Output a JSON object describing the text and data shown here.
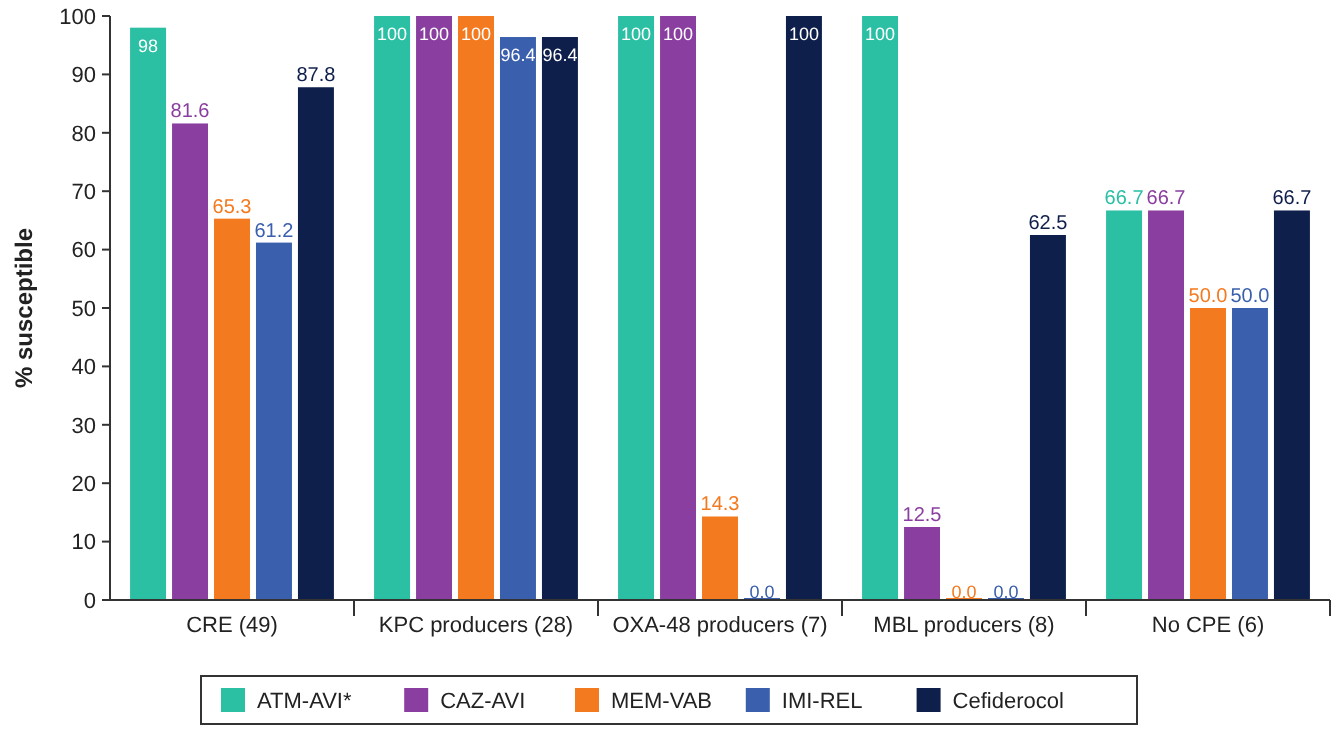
{
  "chart_data": {
    "type": "bar",
    "ylabel": "% susceptible",
    "categories": [
      "CRE (49)",
      "KPC producers (28)",
      "OXA-48 producers (7)",
      "MBL producers (8)",
      "No CPE (6)"
    ],
    "ylim": [
      0,
      100
    ],
    "yticks": [
      0,
      10,
      20,
      30,
      40,
      50,
      60,
      70,
      80,
      90,
      100
    ],
    "grid": false,
    "legend": "bottom",
    "series": [
      {
        "name": "ATM-AVI*",
        "color": "#2bbfa4",
        "values": [
          98,
          100,
          100,
          100,
          66.7
        ],
        "value_labels": [
          "98",
          "100",
          "100",
          "100",
          "66.7"
        ]
      },
      {
        "name": "CAZ-AVI",
        "color": "#8a3fa0",
        "values": [
          81.6,
          100,
          100,
          12.5,
          66.7
        ],
        "value_labels": [
          "81.6",
          "100",
          "100",
          "12.5",
          "66.7"
        ]
      },
      {
        "name": "MEM-VAB",
        "color": "#f47a20",
        "values": [
          65.3,
          100,
          14.3,
          0.0,
          50.0
        ],
        "value_labels": [
          "65.3",
          "100",
          "14.3",
          "0.0",
          "50.0"
        ]
      },
      {
        "name": "IMI-REL",
        "color": "#3a5fad",
        "values": [
          61.2,
          96.4,
          0.0,
          0.0,
          50.0
        ],
        "value_labels": [
          "61.2",
          "96.4",
          "0.0",
          "0.0",
          "50.0"
        ]
      },
      {
        "name": "Cefiderocol",
        "color": "#0f1f4b",
        "values": [
          87.8,
          96.4,
          100,
          62.5,
          66.7
        ],
        "value_labels": [
          "87.8",
          "96.4",
          "100",
          "62.5",
          "66.7"
        ]
      }
    ]
  }
}
